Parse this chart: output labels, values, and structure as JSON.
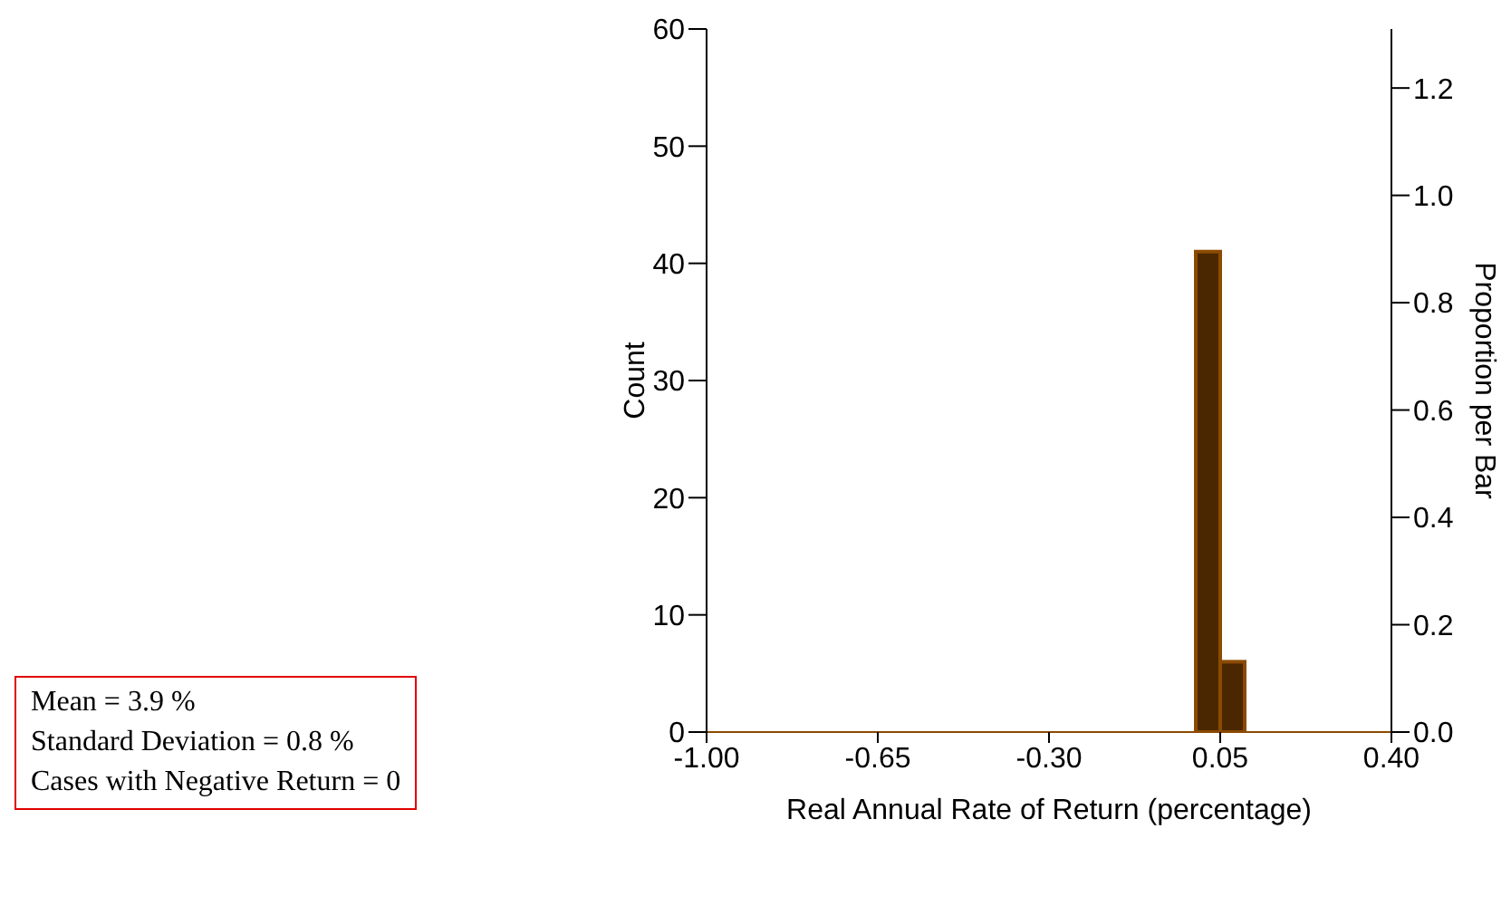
{
  "chart_data": {
    "type": "histogram",
    "xlabel": "Real Annual Rate of Return (percentage)",
    "ylabel": "Count",
    "y2label": "Proportion per Bar",
    "bins": [
      0.0,
      0.05,
      0.1
    ],
    "values": [
      41,
      6
    ],
    "color": "#4a2700",
    "xlim": [
      -1.0,
      0.4
    ],
    "xticks": [
      {
        "value": -1.0,
        "label": "-1.00"
      },
      {
        "value": -0.65,
        "label": "-0.65"
      },
      {
        "value": -0.3,
        "label": "-0.30"
      },
      {
        "value": 0.05,
        "label": "0.05"
      },
      {
        "value": 0.4,
        "label": "0.40"
      }
    ],
    "ylim": [
      0,
      60
    ],
    "yticks": [
      0,
      10,
      20,
      30,
      40,
      50,
      60
    ],
    "y2lim": [
      0,
      1.31
    ],
    "y2ticks": [
      {
        "value": 0,
        "label": "0.0"
      },
      {
        "value": 0.2,
        "label": "0.2"
      },
      {
        "value": 0.4,
        "label": "0.4"
      },
      {
        "value": 0.6,
        "label": "0.6"
      },
      {
        "value": 0.8,
        "label": "0.8"
      },
      {
        "value": 1.0,
        "label": "1.0"
      },
      {
        "value": 1.2,
        "label": "1.2"
      }
    ],
    "annotations": [
      "Mean = 3.9 %",
      "Standard Deviation = 0.8 %",
      "Cases with Negative Return = 0"
    ]
  }
}
